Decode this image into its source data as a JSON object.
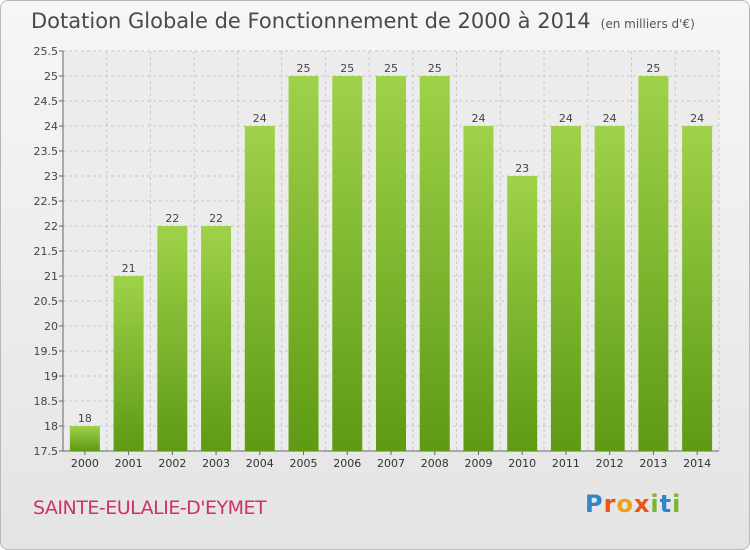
{
  "title": "Dotation Globale de Fonctionnement de 2000 à 2014",
  "subtitle": "(en milliers d'€)",
  "commune": "SAINTE-EULALIE-D'EYMET",
  "logo": "Proxiti",
  "colors": {
    "bar_light": "#9fd24a",
    "bar_dark": "#5e9a14",
    "commune_text": "#cc3366"
  },
  "chart_data": {
    "type": "bar",
    "categories": [
      "2000",
      "2001",
      "2002",
      "2003",
      "2004",
      "2005",
      "2006",
      "2007",
      "2008",
      "2009",
      "2010",
      "2011",
      "2012",
      "2013",
      "2014"
    ],
    "values": [
      18,
      21,
      22,
      22,
      24,
      25,
      25,
      25,
      25,
      24,
      23,
      24,
      24,
      25,
      24
    ],
    "ylim": [
      17.5,
      25.5
    ],
    "yticks": [
      "17.5",
      "18",
      "18.5",
      "19",
      "19.5",
      "20",
      "20.5",
      "21",
      "21.5",
      "22",
      "22.5",
      "23",
      "23.5",
      "24",
      "24.5",
      "25",
      "25.5"
    ],
    "grid": true,
    "xlabel": "",
    "ylabel": ""
  }
}
